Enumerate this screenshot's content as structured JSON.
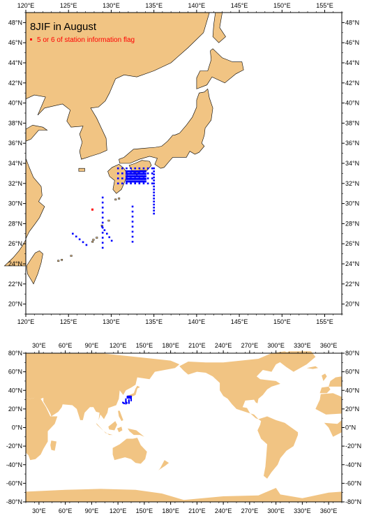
{
  "colors": {
    "land": "#f1c483",
    "ocean": "#ffffff",
    "station": "#0000ff",
    "flagged": "#ff0000",
    "frame": "#000000"
  },
  "top_map": {
    "title": "8JIF in August",
    "legend_label": "5 or 6 of station information flag",
    "lon_range": [
      120,
      157
    ],
    "lat_range": [
      19,
      49
    ],
    "lon_ticks": [
      "120°E",
      "125°E",
      "130°E",
      "135°E",
      "140°E",
      "145°E",
      "150°E",
      "155°E"
    ],
    "lat_ticks": [
      "20°N",
      "22°N",
      "24°N",
      "26°N",
      "28°N",
      "30°N",
      "32°N",
      "34°N",
      "36°N",
      "38°N",
      "40°N",
      "42°N",
      "44°N",
      "46°N",
      "48°N"
    ]
  },
  "bottom_map": {
    "lon_range": [
      15,
      375
    ],
    "lat_range": [
      -80,
      80
    ],
    "lon_ticks": [
      "30°E",
      "60°E",
      "90°E",
      "120°E",
      "150°E",
      "180°E",
      "210°E",
      "240°E",
      "270°E",
      "300°E",
      "330°E",
      "360°E"
    ],
    "lat_ticks": [
      "80°N",
      "60°N",
      "40°N",
      "20°N",
      "0°N",
      "-20°N",
      "-40°N",
      "-60°N",
      "-80°N"
    ]
  },
  "stations": {
    "flagged": [
      [
        127.8,
        29.4
      ]
    ]
  }
}
